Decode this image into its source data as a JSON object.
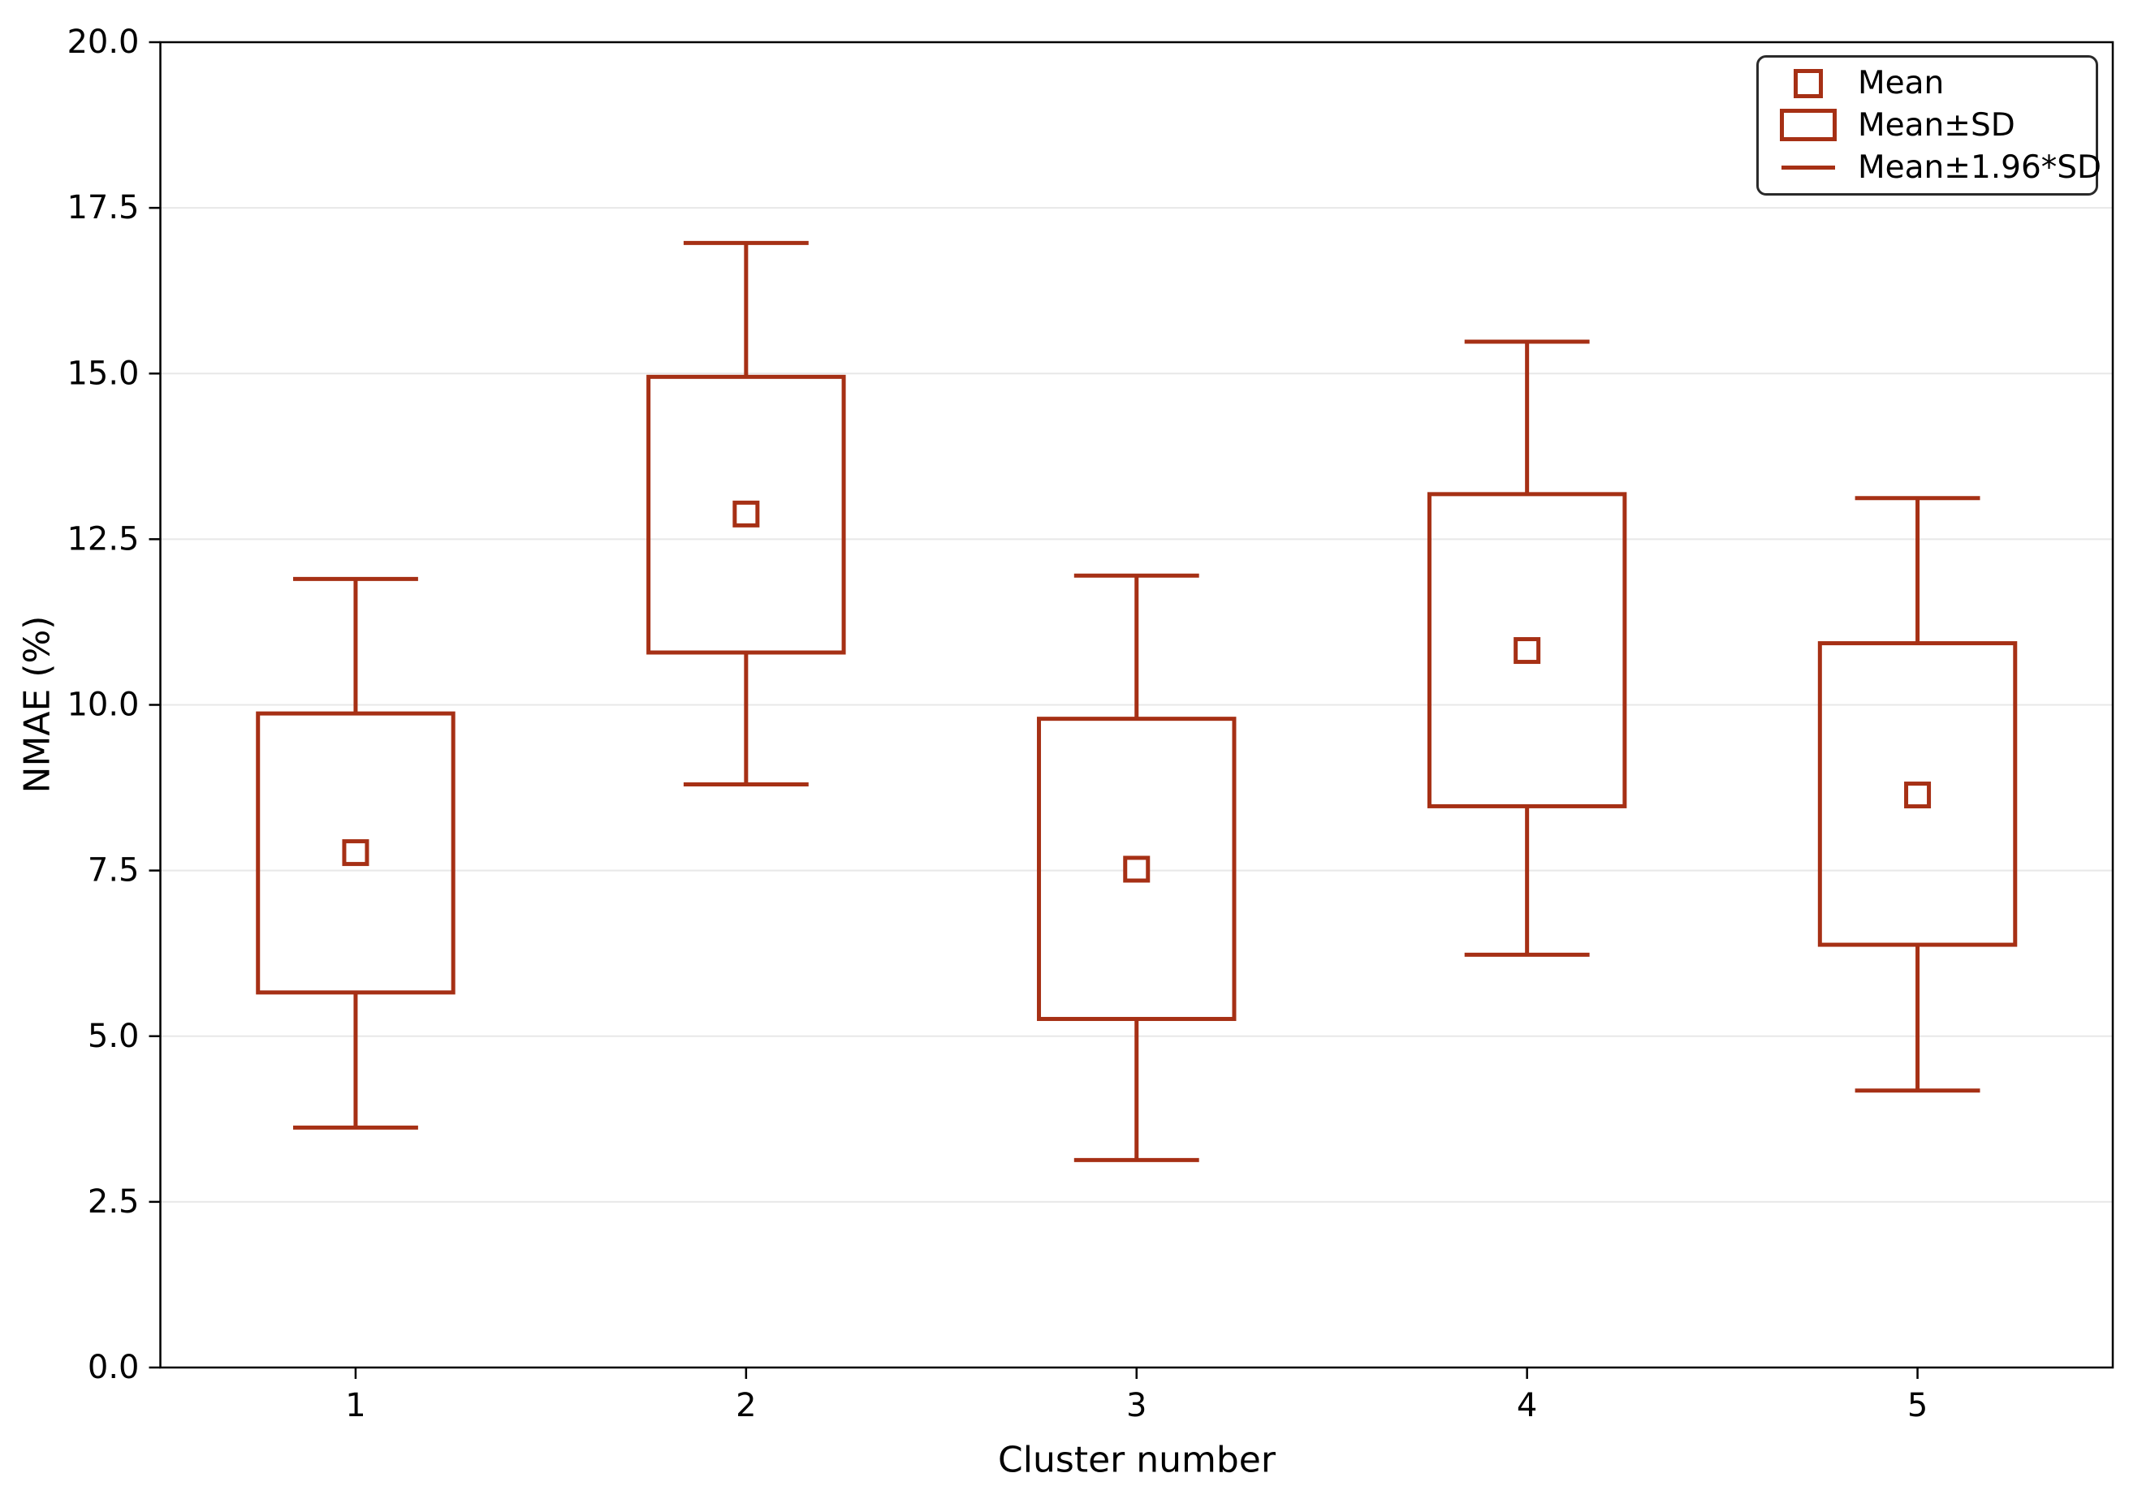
{
  "chart_data": {
    "type": "boxplot",
    "title": "",
    "xlabel": "Cluster number",
    "ylabel": "NMAE (%)",
    "ylim": [
      0.0,
      20.0
    ],
    "y_tick_values": [
      0.0,
      2.5,
      5.0,
      7.5,
      10.0,
      12.5,
      15.0,
      17.5,
      20.0
    ],
    "y_tick_labels": [
      "0.0",
      "2.5",
      "5.0",
      "7.5",
      "10.0",
      "12.5",
      "15.0",
      "17.5",
      "20.0"
    ],
    "x_tick_labels": [
      "1",
      "2",
      "3",
      "4",
      "5"
    ],
    "grid": "horizontal",
    "legend": {
      "position": "upper-right",
      "items": [
        {
          "label": "Mean",
          "marker": "open-square"
        },
        {
          "label": "Mean±SD",
          "marker": "open-box"
        },
        {
          "label": "Mean±1.96*SD",
          "marker": "line"
        }
      ]
    },
    "colors": {
      "series": "#A63015",
      "grid": "#e8e8e8",
      "spine": "#000000",
      "legend_border": "#2a2a2a",
      "text": "#000000"
    },
    "clusters": [
      {
        "x": "1",
        "mean": 7.77,
        "box_low": 5.66,
        "box_high": 9.87,
        "whisker_low": 3.62,
        "whisker_high": 11.9
      },
      {
        "x": "2",
        "mean": 12.88,
        "box_low": 10.79,
        "box_high": 14.95,
        "whisker_low": 8.8,
        "whisker_high": 16.97
      },
      {
        "x": "3",
        "mean": 7.52,
        "box_low": 5.26,
        "box_high": 9.79,
        "whisker_low": 3.13,
        "whisker_high": 11.95
      },
      {
        "x": "4",
        "mean": 10.82,
        "box_low": 8.47,
        "box_high": 13.18,
        "whisker_low": 6.23,
        "whisker_high": 15.48
      },
      {
        "x": "5",
        "mean": 8.64,
        "box_low": 6.38,
        "box_high": 10.93,
        "whisker_low": 4.18,
        "whisker_high": 13.12
      }
    ]
  }
}
